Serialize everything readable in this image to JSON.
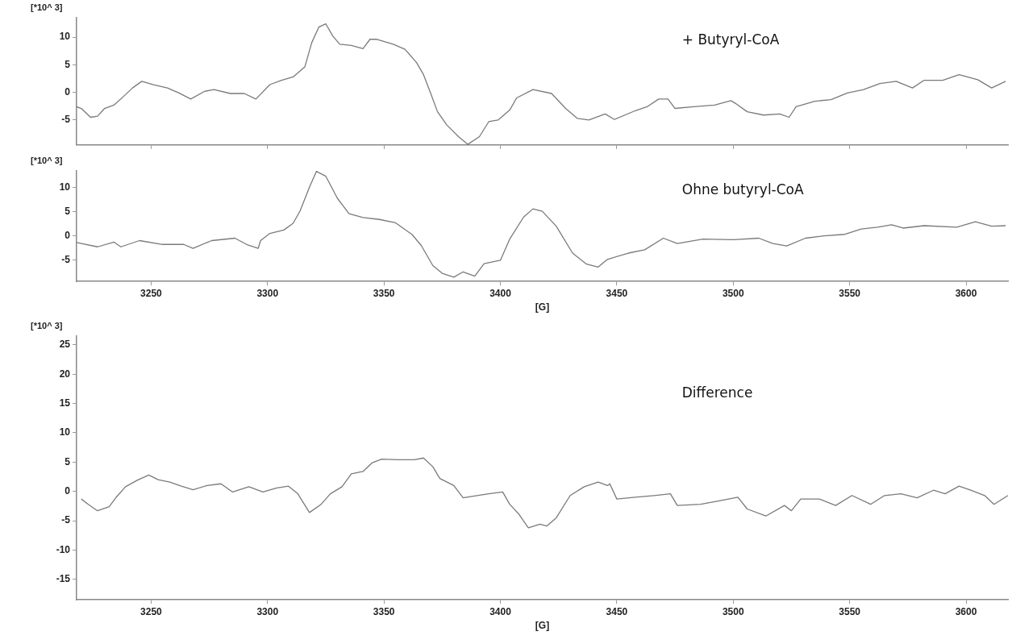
{
  "chart_data": [
    {
      "type": "line",
      "ylabel": "[*10^ 3]",
      "xlim": [
        3218,
        3618
      ],
      "xticks": [
        3250,
        3300,
        3350,
        3400,
        3450,
        3500,
        3550,
        3600
      ],
      "ylim": [
        -9.5,
        13.5
      ],
      "yticks": [
        -5,
        0,
        5,
        10
      ],
      "grid": false,
      "legend": false,
      "marker": "none",
      "line_style": "solid",
      "tick_labels": "y",
      "series": [
        {
          "name": "+ Butyryl-CoA",
          "color": "#7a7a7a",
          "x": [
            3218,
            3220,
            3224,
            3227,
            3230,
            3234,
            3239,
            3242,
            3246,
            3251,
            3257,
            3262,
            3267,
            3273,
            3277,
            3284,
            3290,
            3295,
            3301,
            3306,
            3311,
            3316,
            3319,
            3322,
            3325,
            3328,
            3331,
            3336,
            3341,
            3344,
            3347,
            3354,
            3359,
            3364,
            3367,
            3370,
            3373,
            3377,
            3382,
            3386,
            3391,
            3395,
            3399,
            3404,
            3407,
            3414,
            3422,
            3428,
            3433,
            3438,
            3445,
            3449,
            3458,
            3463,
            3468,
            3472,
            3475,
            3483,
            3492,
            3499,
            3501,
            3506,
            3513,
            3520,
            3524,
            3527,
            3535,
            3542,
            3549,
            3556,
            3563,
            3570,
            3577,
            3582,
            3590,
            3597,
            3605,
            3611,
            3617
          ],
          "values": [
            -2.6,
            -2.9,
            -4.5,
            -4.3,
            -2.9,
            -2.3,
            -0.4,
            0.8,
            2.0,
            1.4,
            0.8,
            -0.1,
            -1.2,
            0.2,
            0.5,
            -0.2,
            -0.2,
            -1.2,
            1.4,
            2.2,
            2.8,
            4.6,
            9.0,
            11.8,
            12.4,
            10.2,
            8.7,
            8.5,
            7.9,
            9.6,
            9.6,
            8.7,
            7.8,
            5.4,
            3.2,
            -0.1,
            -3.5,
            -5.9,
            -8.0,
            -9.4,
            -8.0,
            -5.3,
            -5.0,
            -3.2,
            -1.0,
            0.5,
            -0.2,
            -2.9,
            -4.7,
            -5.0,
            -3.9,
            -4.9,
            -3.3,
            -2.6,
            -1.2,
            -1.2,
            -2.9,
            -2.6,
            -2.3,
            -1.5,
            -2.0,
            -3.5,
            -4.1,
            -3.9,
            -4.5,
            -2.6,
            -1.6,
            -1.3,
            -0.1,
            0.5,
            1.6,
            2.0,
            0.8,
            2.2,
            2.2,
            3.2,
            2.3,
            0.8,
            2.0
          ]
        }
      ]
    },
    {
      "type": "line",
      "ylabel": "[*10^ 3]",
      "xlabel": "[G]",
      "xlim": [
        3218,
        3618
      ],
      "xticks": [
        3250,
        3300,
        3350,
        3400,
        3450,
        3500,
        3550,
        3600
      ],
      "ylim": [
        -9.5,
        13.5
      ],
      "yticks": [
        -5,
        0,
        5,
        10
      ],
      "grid": false,
      "legend": false,
      "marker": "none",
      "line_style": "solid",
      "series": [
        {
          "name": "Ohne butyryl-CoA",
          "color": "#7a7a7a",
          "x": [
            3218,
            3227,
            3234,
            3237,
            3245,
            3255,
            3264,
            3268,
            3276,
            3286,
            3291,
            3296,
            3297,
            3301,
            3307,
            3311,
            3314,
            3318,
            3321,
            3325,
            3330,
            3335,
            3341,
            3348,
            3355,
            3362,
            3366,
            3371,
            3375,
            3380,
            3384,
            3389,
            3393,
            3400,
            3404,
            3410,
            3414,
            3418,
            3424,
            3431,
            3437,
            3442,
            3446,
            3455,
            3462,
            3470,
            3476,
            3487,
            3500,
            3511,
            3517,
            3523,
            3531,
            3539,
            3548,
            3555,
            3562,
            3568,
            3573,
            3582,
            3596,
            3604,
            3611,
            3617
          ],
          "values": [
            -1.4,
            -2.3,
            -1.3,
            -2.3,
            -1.0,
            -1.8,
            -1.8,
            -2.6,
            -1.0,
            -0.5,
            -1.8,
            -2.6,
            -1.0,
            0.5,
            1.2,
            2.6,
            5.2,
            10.1,
            13.4,
            12.4,
            7.8,
            4.6,
            3.8,
            3.4,
            2.7,
            0.3,
            -2.0,
            -6.2,
            -7.8,
            -8.6,
            -7.5,
            -8.4,
            -5.8,
            -5.1,
            -0.7,
            3.9,
            5.6,
            5.1,
            2.0,
            -3.6,
            -5.9,
            -6.5,
            -4.9,
            -3.6,
            -2.9,
            -0.5,
            -1.6,
            -0.7,
            -0.8,
            -0.5,
            -1.6,
            -2.1,
            -0.5,
            0.0,
            0.3,
            1.4,
            1.8,
            2.3,
            1.6,
            2.1,
            1.8,
            2.9,
            2.0,
            2.1
          ]
        }
      ]
    },
    {
      "type": "line",
      "ylabel": "[*10^ 3]",
      "xlabel": "[G]",
      "xlim": [
        3218,
        3618
      ],
      "xticks": [
        3250,
        3300,
        3350,
        3400,
        3450,
        3500,
        3550,
        3600
      ],
      "ylim": [
        -18.5,
        26.5
      ],
      "yticks": [
        -15,
        -10,
        -5,
        0,
        5,
        10,
        15,
        20,
        25
      ],
      "grid": false,
      "legend": false,
      "marker": "none",
      "line_style": "solid",
      "series": [
        {
          "name": "Difference",
          "color": "#7a7a7a",
          "x": [
            3220,
            3223,
            3227,
            3232,
            3235,
            3239,
            3244,
            3249,
            3253,
            3258,
            3263,
            3268,
            3274,
            3280,
            3285,
            3292,
            3298,
            3304,
            3309,
            3313,
            3318,
            3323,
            3327,
            3332,
            3336,
            3341,
            3345,
            3349,
            3356,
            3363,
            3367,
            3371,
            3374,
            3380,
            3384,
            3390,
            3395,
            3401,
            3404,
            3408,
            3412,
            3417,
            3420,
            3424,
            3430,
            3436,
            3442,
            3446,
            3447,
            3450,
            3458,
            3466,
            3473,
            3476,
            3486,
            3494,
            3502,
            3506,
            3514,
            3522,
            3525,
            3529,
            3537,
            3544,
            3551,
            3559,
            3565,
            3572,
            3579,
            3586,
            3591,
            3597,
            3602,
            3608,
            3612,
            3618
          ],
          "values": [
            -1.3,
            -2.2,
            -3.3,
            -2.6,
            -1.0,
            0.8,
            1.9,
            2.8,
            2.0,
            1.6,
            0.9,
            0.3,
            1.0,
            1.3,
            -0.1,
            0.8,
            -0.1,
            0.6,
            0.9,
            -0.4,
            -3.6,
            -2.2,
            -0.4,
            0.8,
            3.0,
            3.4,
            4.9,
            5.5,
            5.4,
            5.4,
            5.7,
            4.2,
            2.2,
            1.0,
            -1.1,
            -0.7,
            -0.4,
            -0.1,
            -2.2,
            -3.9,
            -6.2,
            -5.6,
            -5.9,
            -4.5,
            -0.7,
            0.8,
            1.6,
            1.0,
            1.3,
            -1.3,
            -1.0,
            -0.7,
            -0.4,
            -2.4,
            -2.2,
            -1.6,
            -1.0,
            -3.0,
            -4.2,
            -2.4,
            -3.3,
            -1.3,
            -1.3,
            -2.4,
            -0.7,
            -2.2,
            -0.7,
            -0.4,
            -1.1,
            0.2,
            -0.4,
            0.9,
            0.2,
            -0.7,
            -2.2,
            -0.7
          ]
        }
      ]
    }
  ]
}
